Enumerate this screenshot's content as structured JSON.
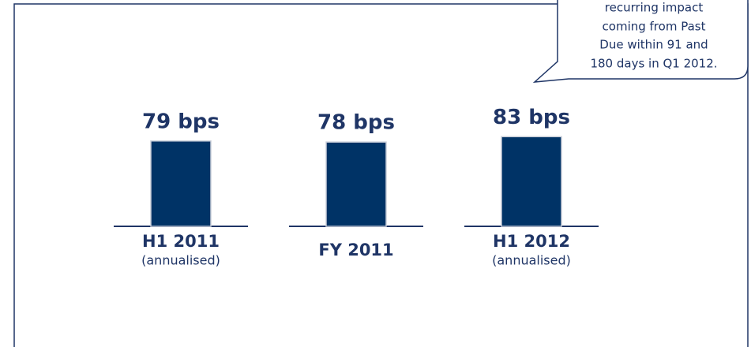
{
  "chart_data": {
    "type": "bar",
    "categories": [
      "H1 2011",
      "FY 2011",
      "H1 2012"
    ],
    "category_notes": [
      "(annualised)",
      null,
      "(annualised)"
    ],
    "values": [
      79,
      78,
      83
    ],
    "value_labels": [
      "79 bps",
      "78 bps",
      "83 bps"
    ],
    "color": "#003366",
    "ylim": [
      0,
      100
    ],
    "annotation": [
      "recurring impact",
      "coming from Past",
      "Due within 91 and",
      "180 days in Q1 2012."
    ]
  }
}
